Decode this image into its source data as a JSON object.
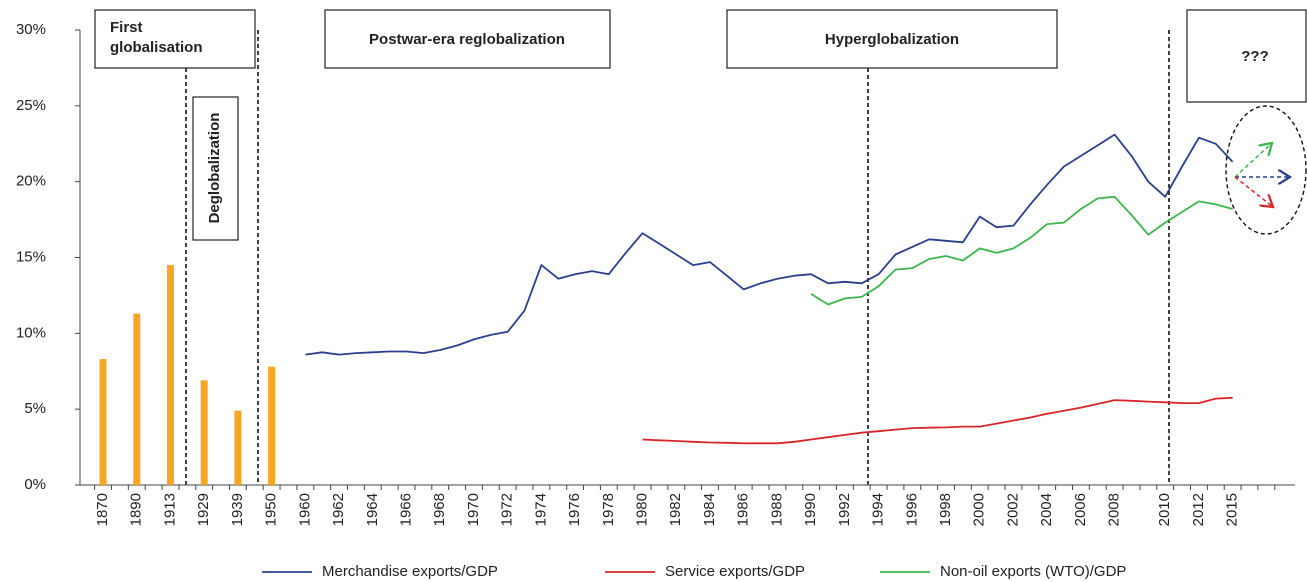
{
  "chart_data": {
    "type": "line",
    "categories": [
      "1870",
      null,
      "1890",
      null,
      "1913",
      null,
      "1929",
      null,
      "1939",
      null,
      "1950",
      null,
      "1960",
      null,
      "1962",
      null,
      "1964",
      null,
      "1966",
      null,
      "1968",
      null,
      "1970",
      null,
      "1972",
      null,
      "1974",
      null,
      "1976",
      null,
      "1978",
      null,
      "1980",
      null,
      "1982",
      null,
      "1984",
      null,
      "1986",
      null,
      "1988",
      null,
      "1990",
      null,
      "1992",
      null,
      "1994",
      null,
      "1996",
      null,
      "1998",
      null,
      "2000",
      null,
      "2002",
      null,
      "2004",
      null,
      "2006",
      null,
      "2008",
      null,
      null,
      "2010",
      null,
      "2012",
      null,
      "2015",
      null,
      null,
      null
    ],
    "bars": {
      "color": "#f5a623",
      "values": [
        8.3,
        null,
        11.3,
        null,
        14.5,
        null,
        6.9,
        null,
        4.9,
        null,
        7.8,
        null,
        null,
        null,
        null,
        null,
        null,
        null,
        null,
        null,
        null,
        null,
        null,
        null,
        null,
        null,
        null,
        null,
        null,
        null,
        null,
        null,
        null,
        null,
        null,
        null,
        null,
        null,
        null,
        null,
        null,
        null,
        null,
        null,
        null,
        null,
        null,
        null,
        null,
        null,
        null,
        null,
        null,
        null,
        null,
        null,
        null,
        null,
        null,
        null,
        null,
        null,
        null,
        null,
        null,
        null,
        null,
        null,
        null,
        null,
        null
      ]
    },
    "series": [
      {
        "name": "Merchandise exports/GDP",
        "color": "#2b3f8c",
        "values": [
          null,
          null,
          null,
          null,
          null,
          null,
          null,
          null,
          null,
          null,
          null,
          null,
          8.6,
          8.75,
          8.6,
          8.7,
          8.75,
          8.8,
          8.8,
          8.7,
          8.9,
          9.2,
          9.6,
          9.9,
          10.1,
          11.5,
          14.5,
          13.6,
          13.9,
          14.1,
          13.9,
          15.3,
          16.6,
          15.9,
          15.2,
          14.5,
          14.7,
          13.8,
          12.9,
          13.3,
          13.6,
          13.8,
          13.9,
          13.3,
          13.4,
          13.3,
          13.9,
          15.2,
          15.7,
          16.2,
          16.1,
          16.0,
          17.7,
          17.0,
          17.1,
          18.5,
          19.8,
          21.0,
          21.7,
          22.4,
          23.1,
          21.7,
          20.0,
          19.0,
          21.0,
          22.9,
          22.5,
          21.3,
          null,
          null,
          null
        ]
      },
      {
        "name": "Service exports/GDP",
        "color": "#d62728",
        "values": [
          null,
          null,
          null,
          null,
          null,
          null,
          null,
          null,
          null,
          null,
          null,
          null,
          null,
          null,
          null,
          null,
          null,
          null,
          null,
          null,
          null,
          null,
          null,
          null,
          null,
          null,
          null,
          null,
          null,
          null,
          null,
          null,
          3.0,
          2.95,
          2.9,
          2.85,
          2.8,
          2.78,
          2.75,
          2.75,
          2.75,
          2.85,
          3.0,
          3.15,
          3.3,
          3.45,
          3.55,
          3.65,
          3.75,
          3.78,
          3.8,
          3.85,
          3.85,
          4.05,
          4.25,
          4.45,
          4.7,
          4.9,
          5.1,
          5.35,
          5.6,
          5.55,
          5.5,
          5.45,
          5.4,
          5.4,
          5.7,
          5.75,
          null,
          null,
          null
        ]
      },
      {
        "name": "Non-oil exports (WTO)/GDP",
        "color": "#3cb54a",
        "values": [
          null,
          null,
          null,
          null,
          null,
          null,
          null,
          null,
          null,
          null,
          null,
          null,
          null,
          null,
          null,
          null,
          null,
          null,
          null,
          null,
          null,
          null,
          null,
          null,
          null,
          null,
          null,
          null,
          null,
          null,
          null,
          null,
          null,
          null,
          null,
          null,
          null,
          null,
          null,
          null,
          null,
          null,
          12.6,
          11.9,
          12.3,
          12.4,
          13.1,
          14.2,
          14.3,
          14.9,
          15.1,
          14.8,
          15.6,
          15.3,
          15.6,
          16.3,
          17.2,
          17.3,
          18.2,
          18.9,
          19.0,
          17.8,
          16.5,
          17.3,
          18.0,
          18.7,
          18.5,
          18.2,
          null,
          null,
          null
        ]
      }
    ],
    "ylim": [
      0,
      30
    ],
    "yticks": [
      {
        "value": 0,
        "label": "0%"
      },
      {
        "value": 5,
        "label": "5%"
      },
      {
        "value": 10,
        "label": "10%"
      },
      {
        "value": 15,
        "label": "15%"
      },
      {
        "value": 20,
        "label": "20%"
      },
      {
        "value": 25,
        "label": "25%"
      },
      {
        "value": 30,
        "label": "30%"
      }
    ],
    "annotations": [
      "First",
      "globalisation",
      "Deglobalization",
      "Postwar-era reglobalization",
      "Hyperglobalization",
      "???"
    ]
  }
}
